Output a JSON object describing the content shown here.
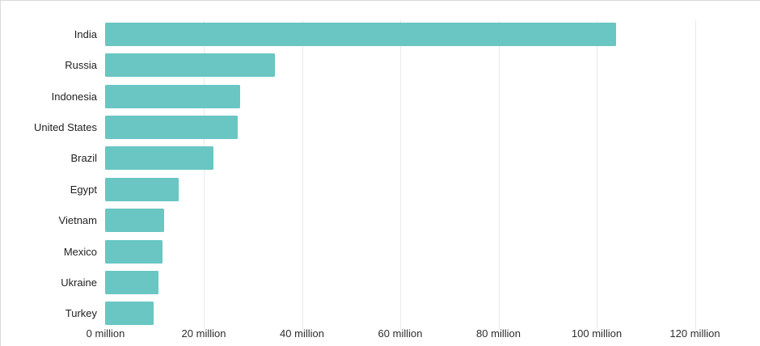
{
  "chart": {
    "bar_color": "#69c6c2",
    "grid_color": "#e9e9e9",
    "label_color": "#1f1f1f",
    "tick_color": "#2e2e2e"
  },
  "chart_data": {
    "type": "bar",
    "orientation": "horizontal",
    "title": "",
    "xlabel": "",
    "ylabel": "",
    "unit": "million",
    "categories": [
      "India",
      "Russia",
      "Indonesia",
      "United States",
      "Brazil",
      "Egypt",
      "Vietnam",
      "Mexico",
      "Ukraine",
      "Turkey"
    ],
    "values": [
      104,
      34.5,
      27.5,
      27,
      22,
      15,
      12,
      11.7,
      10.8,
      9.9
    ],
    "x_ticks": [
      0,
      20,
      40,
      60,
      80,
      100,
      120
    ],
    "x_tick_labels": [
      "0 million",
      "20 million",
      "40 million",
      "60 million",
      "80 million",
      "100 million",
      "120 million"
    ],
    "xlim": [
      0,
      132
    ],
    "grid": true,
    "legend_position": "none"
  }
}
